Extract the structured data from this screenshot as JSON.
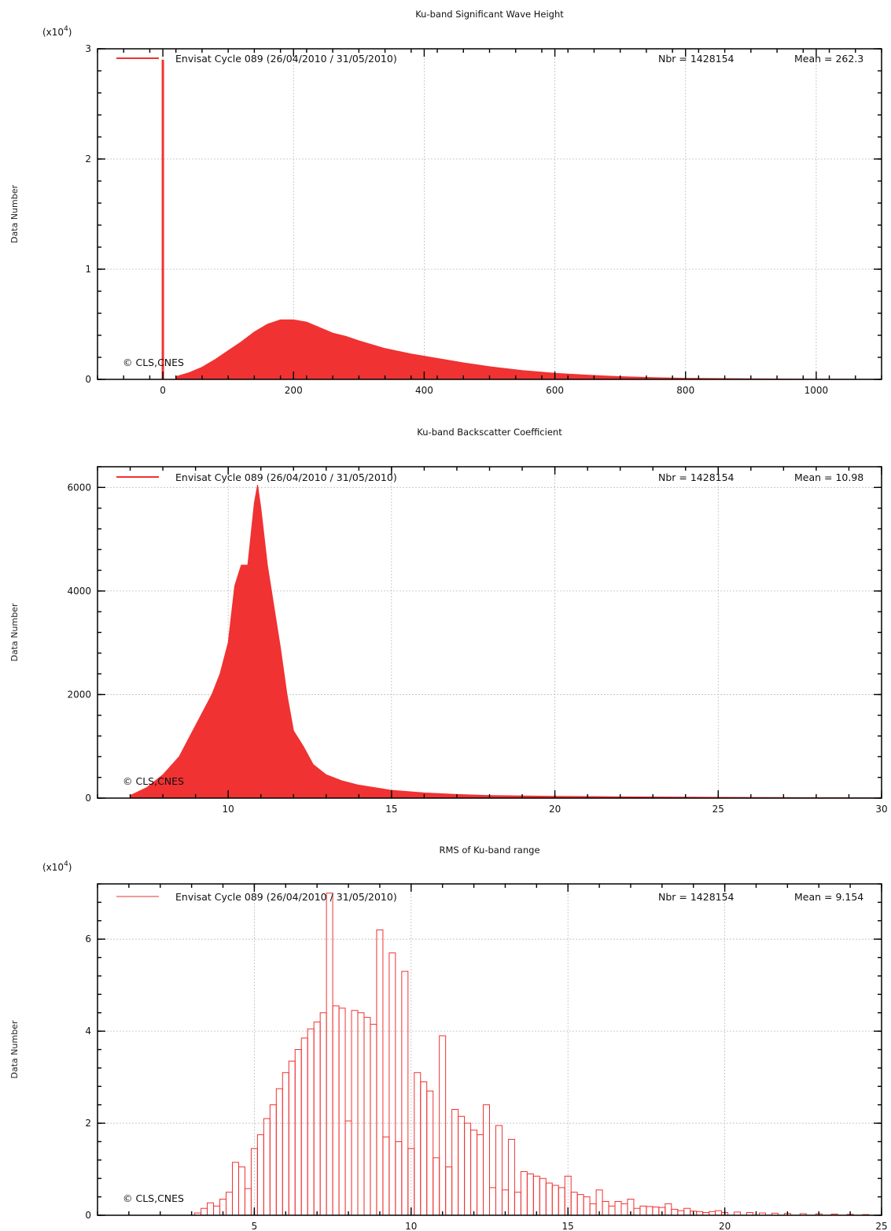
{
  "copyright_text": "© CLS,CNES",
  "series_color": "#f03232",
  "chart_data": [
    {
      "id": "swh",
      "type": "bar",
      "title": "Ku-band Significant Wave Height",
      "ylabel": "Data Number",
      "scale_label": "(x10",
      "scale_exp": "4",
      "legend": {
        "label": "Envisat Cycle 089 (26/04/2010 / 31/05/2010)",
        "nbr": "Nbr = 1428154",
        "mean": "Mean = 262.3"
      },
      "xlim": [
        -100,
        1100
      ],
      "ylim": [
        0,
        30000
      ],
      "xticks": [
        0,
        200,
        400,
        600,
        800,
        1000
      ],
      "yticks": [
        0,
        10000,
        20000,
        30000
      ],
      "ytick_labels": [
        "0",
        "1",
        "2",
        "3"
      ],
      "x": [
        0,
        20,
        40,
        60,
        80,
        100,
        120,
        140,
        160,
        180,
        200,
        220,
        240,
        260,
        280,
        300,
        340,
        380,
        420,
        460,
        500,
        550,
        600,
        650,
        700,
        750,
        800,
        900,
        1000,
        1100
      ],
      "y": [
        29000,
        250,
        600,
        1100,
        1800,
        2600,
        3400,
        4300,
        5000,
        5400,
        5400,
        5200,
        4700,
        4200,
        3900,
        3500,
        2800,
        2300,
        1900,
        1500,
        1150,
        800,
        550,
        380,
        250,
        160,
        100,
        50,
        20,
        5
      ]
    },
    {
      "id": "sigma0",
      "type": "bar",
      "title": "Ku-band Backscatter Coefficient",
      "ylabel": "Data Number",
      "legend": {
        "label": "Envisat Cycle 089 (26/04/2010 / 31/05/2010)",
        "nbr": "Nbr = 1428154",
        "mean": "Mean = 10.98"
      },
      "xlim": [
        6,
        30
      ],
      "ylim": [
        0,
        6400
      ],
      "xticks": [
        10,
        15,
        20,
        25,
        30
      ],
      "yticks": [
        0,
        2000,
        4000,
        6000
      ],
      "ytick_labels": [
        "0",
        "2000",
        "4000",
        "6000"
      ],
      "x": [
        7,
        7.5,
        8,
        8.5,
        9,
        9.5,
        9.75,
        10,
        10.2,
        10.4,
        10.6,
        10.8,
        10.9,
        11,
        11.2,
        11.4,
        11.6,
        11.8,
        12,
        12.3,
        12.6,
        13,
        13.5,
        14,
        15,
        16,
        17,
        18,
        20,
        22,
        25,
        30
      ],
      "y": [
        50,
        200,
        450,
        800,
        1400,
        2000,
        2400,
        3000,
        4100,
        4500,
        4500,
        5700,
        6050,
        5600,
        4500,
        3700,
        2900,
        2000,
        1300,
        1000,
        650,
        450,
        330,
        250,
        150,
        100,
        70,
        50,
        35,
        25,
        15,
        5
      ]
    },
    {
      "id": "rms_range",
      "type": "bar",
      "title": "RMS of Ku-band range",
      "ylabel": "Data Number",
      "scale_label": "(x10",
      "scale_exp": "4",
      "legend": {
        "label": "Envisat Cycle 089 (26/04/2010 / 31/05/2010)",
        "nbr": "Nbr = 1428154",
        "mean": "Mean = 9.154"
      },
      "xlim": [
        0,
        25
      ],
      "ylim": [
        0,
        72000
      ],
      "xticks": [
        5,
        10,
        15,
        20,
        25
      ],
      "yticks": [
        0,
        20000,
        40000,
        60000
      ],
      "ytick_labels": [
        "0",
        "2",
        "4",
        "6"
      ],
      "bin_width": 0.2,
      "x": [
        3.2,
        3.4,
        3.6,
        3.8,
        4.0,
        4.2,
        4.4,
        4.6,
        4.8,
        5.0,
        5.2,
        5.4,
        5.6,
        5.8,
        6.0,
        6.2,
        6.4,
        6.6,
        6.8,
        7.0,
        7.2,
        7.4,
        7.6,
        7.8,
        8.0,
        8.2,
        8.4,
        8.6,
        8.8,
        9.0,
        9.2,
        9.4,
        9.6,
        9.8,
        10.0,
        10.2,
        10.4,
        10.6,
        10.8,
        11.0,
        11.2,
        11.4,
        11.6,
        11.8,
        12.0,
        12.2,
        12.4,
        12.6,
        12.8,
        13.0,
        13.2,
        13.4,
        13.6,
        13.8,
        14.0,
        14.2,
        14.4,
        14.6,
        14.8,
        15.0,
        15.2,
        15.4,
        15.6,
        15.8,
        16.0,
        16.2,
        16.4,
        16.6,
        16.8,
        17.0,
        17.2,
        17.4,
        17.6,
        17.8,
        18.0,
        18.2,
        18.4,
        18.6,
        18.8,
        19.0,
        19.2,
        19.4,
        19.6,
        19.8,
        20.0,
        20.4,
        20.8,
        21.2,
        21.6,
        22.0,
        22.5,
        23.0,
        23.5,
        24.0,
        24.5
      ],
      "y": [
        500,
        1500,
        2700,
        2000,
        3500,
        5000,
        11500,
        10500,
        5800,
        14500,
        17500,
        21000,
        24000,
        27500,
        31000,
        33500,
        36000,
        38500,
        40500,
        42000,
        44000,
        70000,
        45500,
        45000,
        20500,
        44500,
        44000,
        43000,
        41500,
        62000,
        17000,
        57000,
        16000,
        53000,
        14500,
        31000,
        29000,
        27000,
        12500,
        39000,
        10500,
        23000,
        21500,
        20000,
        18500,
        17500,
        24000,
        6000,
        19500,
        5500,
        16500,
        5000,
        9500,
        9000,
        8500,
        8000,
        7000,
        6500,
        6000,
        8500,
        5000,
        4500,
        4000,
        2500,
        5500,
        3000,
        2000,
        3000,
        2500,
        3500,
        1500,
        2000,
        1900,
        1800,
        1700,
        2500,
        1300,
        1000,
        1500,
        900,
        800,
        600,
        800,
        1000,
        600,
        700,
        600,
        500,
        450,
        400,
        350,
        300,
        250,
        200,
        150
      ]
    }
  ]
}
